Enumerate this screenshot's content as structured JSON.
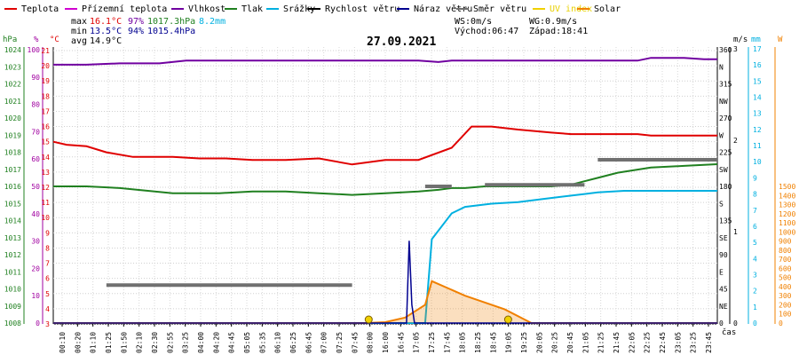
{
  "chart_data": {
    "type": "line",
    "title": "27.09.2021",
    "legend": [
      {
        "label": "Teplota",
        "color": "#e00000"
      },
      {
        "label": "Přízemní teplota",
        "color": "#d000d0"
      },
      {
        "label": "Vlhkost",
        "color": "#7000a0"
      },
      {
        "label": "Tlak",
        "color": "#208020"
      },
      {
        "label": "Srážky",
        "color": "#00b0e0"
      },
      {
        "label": "Rychlost větru",
        "color": "#000000"
      },
      {
        "label": "Náraz větru",
        "color": "#000090"
      },
      {
        "label": "Směr větru",
        "color": "#707070"
      },
      {
        "label": "UV index",
        "color": "#f0d000"
      },
      {
        "label": "Solar",
        "color": "#f08000"
      }
    ],
    "stats": {
      "max_label": "max",
      "max_temp": "16.1°C",
      "max_hum": "97%",
      "max_press": "1017.3hPa",
      "max_rain": "8.2mm",
      "min_label": "min",
      "min_temp": "13.5°C",
      "min_hum": "94%",
      "min_press": "1015.4hPa",
      "avg_label": "avg",
      "avg_temp": "14.9°C",
      "ws": "WS:0m/s",
      "wg": "WG:0.9m/s",
      "sunrise": "Východ:06:47",
      "sunset": "Západ:18:41"
    },
    "axes": {
      "hpa_unit": "hPa",
      "hpa_ticks": [
        "1024",
        "1023",
        "1022",
        "1021",
        "1020",
        "1019",
        "1018",
        "1017",
        "1016",
        "1015",
        "1014",
        "1013",
        "1012",
        "1011",
        "1010",
        "1009",
        "1008"
      ],
      "pct_unit": "%",
      "pct_ticks": [
        "100",
        "90",
        "80",
        "70",
        "60",
        "50",
        "40",
        "30",
        "20",
        "10",
        "0"
      ],
      "temp_unit": "°C",
      "temp_ticks": [
        "21",
        "20",
        "19",
        "18",
        "17",
        "16",
        "15",
        "14",
        "13",
        "12",
        "11",
        "10",
        "9",
        "8",
        "7",
        "6",
        "5",
        "4",
        "3"
      ],
      "dir_ticks": [
        "360",
        "N",
        "315",
        "NW",
        "270",
        "W",
        "225",
        "SW",
        "180",
        "S",
        "135",
        "SE",
        "90",
        "E",
        "45",
        "NE",
        "0"
      ],
      "ms_unit": "m/s",
      "ms_ticks": [
        "3",
        "2",
        "1",
        "0"
      ],
      "mm_unit": "mm",
      "mm_ticks": [
        "17",
        "16",
        "15",
        "14",
        "13",
        "12",
        "11",
        "10",
        "9",
        "8",
        "7",
        "6",
        "5",
        "4",
        "3",
        "2",
        "1",
        "0"
      ],
      "w_unit": "W",
      "w_ticks": [
        "1500",
        "1400",
        "1300",
        "1200",
        "1100",
        "1000",
        "900",
        "800",
        "700",
        "600",
        "500",
        "400",
        "300",
        "200",
        "100",
        "0"
      ],
      "time_ticks": [
        "00:10",
        "00:20",
        "01:10",
        "01:25",
        "01:50",
        "02:10",
        "02:30",
        "02:55",
        "03:25",
        "04:00",
        "04:20",
        "04:45",
        "05:05",
        "05:35",
        "06:10",
        "06:25",
        "06:45",
        "07:00",
        "07:25",
        "07:45",
        "08:00",
        "16:00",
        "16:45",
        "17:05",
        "17:25",
        "17:45",
        "18:05",
        "18:25",
        "18:45",
        "19:05",
        "19:25",
        "20:05",
        "20:25",
        "20:45",
        "21:05",
        "21:25",
        "21:45",
        "22:05",
        "22:25",
        "22:45",
        "23:05",
        "23:25",
        "23:45"
      ],
      "x_unit": "čas"
    },
    "x_range": [
      0,
      100
    ],
    "ylim_temp": [
      3,
      21
    ],
    "series": [
      {
        "name": "Teplota",
        "axis": "temp",
        "color": "#e00000",
        "x": [
          0,
          2,
          5,
          8,
          12,
          18,
          22,
          26,
          30,
          35,
          40,
          45,
          50,
          55,
          60,
          63,
          66,
          70,
          75,
          78,
          80,
          85,
          88,
          90,
          92,
          94,
          96,
          98,
          100
        ],
        "values": [
          15.0,
          14.8,
          14.7,
          14.3,
          14.0,
          14.0,
          13.9,
          13.9,
          13.8,
          13.8,
          13.9,
          13.5,
          13.8,
          13.8,
          14.6,
          16.0,
          16.0,
          15.8,
          15.6,
          15.5,
          15.5,
          15.5,
          15.5,
          15.4,
          15.4,
          15.4,
          15.4,
          15.4,
          15.4
        ]
      },
      {
        "name": "Vlhkost",
        "axis": "pct",
        "color": "#7000a0",
        "x": [
          0,
          5,
          10,
          16,
          20,
          25,
          30,
          40,
          50,
          55,
          58,
          60,
          62,
          70,
          80,
          85,
          88,
          90,
          92,
          95,
          98,
          100
        ],
        "values": [
          94.5,
          94.5,
          95,
          95,
          96,
          96,
          96,
          96,
          96,
          96,
          95.5,
          96,
          96,
          96,
          96,
          96,
          96,
          97,
          97,
          97,
          96.5,
          96.5
        ]
      },
      {
        "name": "Tlak",
        "axis": "hpa",
        "color": "#208020",
        "x": [
          0,
          5,
          10,
          18,
          20,
          25,
          30,
          35,
          40,
          45,
          50,
          55,
          58,
          60,
          62,
          65,
          70,
          75,
          78,
          80,
          82,
          85,
          90,
          95,
          100
        ],
        "values": [
          1016.0,
          1016.0,
          1015.9,
          1015.6,
          1015.6,
          1015.6,
          1015.7,
          1015.7,
          1015.6,
          1015.5,
          1015.6,
          1015.7,
          1015.8,
          1015.9,
          1015.9,
          1016.0,
          1016.0,
          1016.0,
          1016.1,
          1016.3,
          1016.5,
          1016.8,
          1017.1,
          1017.2,
          1017.3
        ]
      },
      {
        "name": "Srážky",
        "axis": "mm",
        "color": "#00b0e0",
        "x": [
          0,
          56,
          57,
          60,
          62,
          66,
          70,
          74,
          78,
          80,
          82,
          86,
          90,
          95,
          100
        ],
        "values": [
          0,
          0,
          5.2,
          6.8,
          7.2,
          7.4,
          7.5,
          7.7,
          7.9,
          8.0,
          8.1,
          8.2,
          8.2,
          8.2,
          8.2
        ]
      },
      {
        "name": "Solar",
        "axis": "w",
        "color": "#f08000",
        "x": [
          0,
          47,
          50,
          53,
          56,
          57,
          62,
          68,
          72,
          100
        ],
        "values": [
          0,
          0,
          10,
          60,
          200,
          460,
          300,
          150,
          0,
          0
        ]
      },
      {
        "name": "Náraz větru",
        "axis": "ms",
        "color": "#000090",
        "x": [
          0,
          53.2,
          53.6,
          54.0,
          54.4,
          100
        ],
        "values": [
          0,
          0,
          0.9,
          0.2,
          0,
          0
        ]
      },
      {
        "name": "Směr větru",
        "axis": "dir",
        "color": "#707070",
        "x": [
          8,
          45,
          56,
          60,
          65,
          80,
          82,
          100
        ],
        "values": [
          50,
          50,
          180,
          180,
          182,
          182,
          215,
          215
        ]
      }
    ],
    "uv_markers": [
      {
        "x": 47.5,
        "value": 0
      },
      {
        "x": 68.5,
        "value": 0
      }
    ]
  }
}
